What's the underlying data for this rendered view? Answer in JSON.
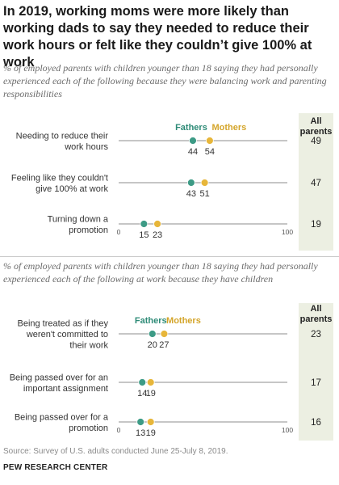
{
  "title": "In 2019, working moms were more likely than working dads to say they needed to reduce their work hours or felt like they couldn’t give 100% at work",
  "source": "Source: Survey of U.S. adults conducted June 25-July 8, 2019.",
  "organization": "PEW RESEARCH CENTER",
  "colors": {
    "fathers": "#3d9b86",
    "mothers": "#e7b63a",
    "fathers_label": "#2e8b77",
    "mothers_label": "#d4a52a",
    "all_col_bg": "#ecefe2",
    "axis_line": "#8c8c8c"
  },
  "chart_data": [
    {
      "type": "dot",
      "subtitle": "% of employed parents with children younger than 18 saying they had personally experienced each of the following because they were balancing work and parenting responsibilities",
      "legend": [
        "Fathers",
        "Mothers"
      ],
      "all_header": "All parents",
      "xlim": [
        0,
        100
      ],
      "xticks": [
        "0",
        "100"
      ],
      "categories": [
        [
          "Needing to reduce their",
          "work hours"
        ],
        [
          "Feeling like they couldn't",
          "give 100% at work"
        ],
        [
          "Turning down a",
          "promotion"
        ]
      ],
      "series": [
        {
          "name": "Fathers",
          "values": [
            44,
            43,
            15
          ]
        },
        {
          "name": "Mothers",
          "values": [
            54,
            51,
            23
          ]
        }
      ],
      "all_parents": [
        49,
        47,
        19
      ]
    },
    {
      "type": "dot",
      "subtitle": "% of employed parents with children younger than 18 saying they had personally experienced each of the following at work because they have children",
      "legend": [
        "Fathers",
        "Mothers"
      ],
      "all_header": "All parents",
      "xlim": [
        0,
        100
      ],
      "xticks": [
        "0",
        "100"
      ],
      "categories": [
        [
          "Being treated as if they",
          "weren't committed to",
          "their work"
        ],
        [
          "Being passed over for an",
          "important assignment"
        ],
        [
          "Being passed over for a",
          "promotion"
        ]
      ],
      "series": [
        {
          "name": "Fathers",
          "values": [
            20,
            14,
            13
          ]
        },
        {
          "name": "Mothers",
          "values": [
            27,
            19,
            19
          ]
        }
      ],
      "all_parents": [
        23,
        17,
        16
      ]
    }
  ]
}
